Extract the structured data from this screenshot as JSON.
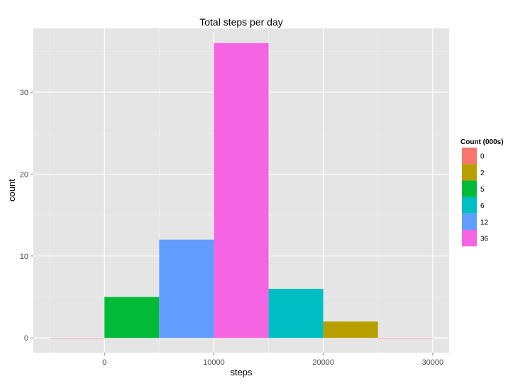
{
  "chart_data": {
    "type": "bar",
    "title": "Total steps per day",
    "xlabel": "steps",
    "ylabel": "count",
    "bin_width": 5000,
    "bins": [
      {
        "x_start": -5000,
        "x_end": 0,
        "count": 0,
        "fill": "#F8766D"
      },
      {
        "x_start": 0,
        "x_end": 5000,
        "count": 5,
        "fill": "#00BA38"
      },
      {
        "x_start": 5000,
        "x_end": 10000,
        "count": 12,
        "fill": "#619CFF"
      },
      {
        "x_start": 10000,
        "x_end": 15000,
        "count": 36,
        "fill": "#F564E3"
      },
      {
        "x_start": 15000,
        "x_end": 20000,
        "count": 6,
        "fill": "#00BFC4"
      },
      {
        "x_start": 20000,
        "x_end": 25000,
        "count": 2,
        "fill": "#B79F00"
      },
      {
        "x_start": 25000,
        "x_end": 30000,
        "count": 0,
        "fill": "#F8766D"
      }
    ],
    "xlim": [
      -6500,
      31500
    ],
    "ylim": [
      -1.8,
      37.8
    ],
    "x_ticks": [
      0,
      10000,
      20000,
      30000
    ],
    "x_tick_labels": [
      "0",
      "10000",
      "20000",
      "30000"
    ],
    "y_ticks": [
      0,
      10,
      20,
      30
    ],
    "y_tick_labels": [
      "0",
      "10",
      "20",
      "30"
    ],
    "grid": true,
    "panel_background": "#E5E5E5",
    "grid_color": "#FFFFFF",
    "legend": {
      "title": "Count (000s)",
      "position": "right",
      "items": [
        {
          "label": "0",
          "color": "#F8766D"
        },
        {
          "label": "2",
          "color": "#B79F00"
        },
        {
          "label": "5",
          "color": "#00BA38"
        },
        {
          "label": "6",
          "color": "#00BFC4"
        },
        {
          "label": "12",
          "color": "#619CFF"
        },
        {
          "label": "36",
          "color": "#F564E3"
        }
      ]
    }
  }
}
